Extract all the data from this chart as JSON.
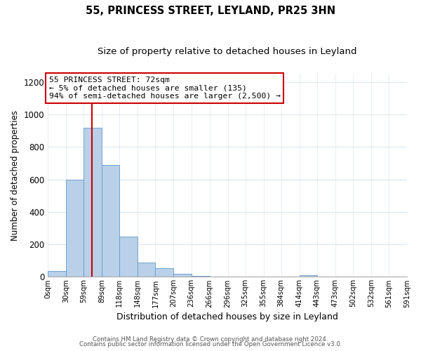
{
  "title": "55, PRINCESS STREET, LEYLAND, PR25 3HN",
  "subtitle": "Size of property relative to detached houses in Leyland",
  "xlabel": "Distribution of detached houses by size in Leyland",
  "ylabel": "Number of detached properties",
  "bin_edges": [
    0,
    30,
    59,
    89,
    118,
    148,
    177,
    207,
    236,
    266,
    296,
    325,
    355,
    384,
    414,
    443,
    473,
    502,
    532,
    561,
    591
  ],
  "bar_heights": [
    35,
    600,
    920,
    690,
    250,
    90,
    55,
    20,
    5,
    0,
    0,
    0,
    0,
    0,
    10,
    0,
    0,
    0,
    0,
    0
  ],
  "bar_color": "#b8d0e8",
  "bar_edge_color": "#6699cc",
  "tick_labels": [
    "0sqm",
    "30sqm",
    "59sqm",
    "89sqm",
    "118sqm",
    "148sqm",
    "177sqm",
    "207sqm",
    "236sqm",
    "266sqm",
    "296sqm",
    "325sqm",
    "355sqm",
    "384sqm",
    "414sqm",
    "443sqm",
    "473sqm",
    "502sqm",
    "532sqm",
    "561sqm",
    "591sqm"
  ],
  "ylim": [
    0,
    1250
  ],
  "yticks": [
    0,
    200,
    400,
    600,
    800,
    1000,
    1200
  ],
  "property_line_x": 72,
  "property_line_color": "#cc0000",
  "annotation_line1": "55 PRINCESS STREET: 72sqm",
  "annotation_line2": "← 5% of detached houses are smaller (135)",
  "annotation_line3": "94% of semi-detached houses are larger (2,500) →",
  "annotation_box_color": "#ffffff",
  "annotation_box_edge": "#cc0000",
  "footer_line1": "Contains HM Land Registry data © Crown copyright and database right 2024.",
  "footer_line2": "Contains public sector information licensed under the Open Government Licence v3.0.",
  "background_color": "#ffffff",
  "grid_color": "#dde8f0",
  "title_fontsize": 10.5,
  "subtitle_fontsize": 9.5
}
